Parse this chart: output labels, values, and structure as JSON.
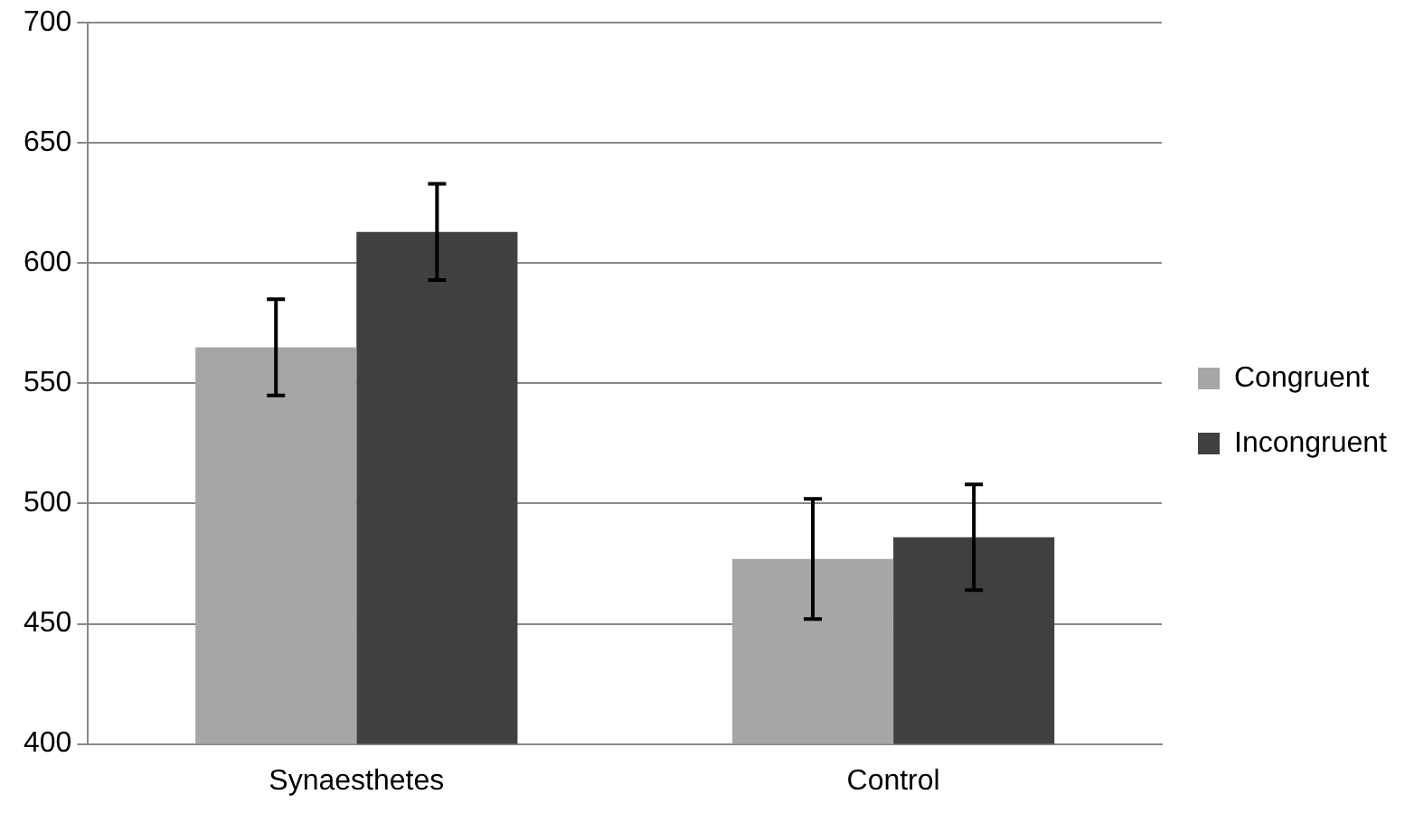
{
  "chart_data": {
    "type": "bar",
    "categories": [
      "Synaesthetes",
      "Control"
    ],
    "series": [
      {
        "name": "Congruent",
        "color": "#a6a6a6",
        "values": [
          565,
          477
        ],
        "errors": [
          20,
          25
        ]
      },
      {
        "name": "Incongruent",
        "color": "#404040",
        "values": [
          613,
          486
        ],
        "errors": [
          20,
          22
        ]
      }
    ],
    "ylim": [
      400,
      700
    ],
    "yticks": [
      400,
      450,
      500,
      550,
      600,
      650,
      700
    ],
    "grid": "y",
    "legend": "right"
  }
}
